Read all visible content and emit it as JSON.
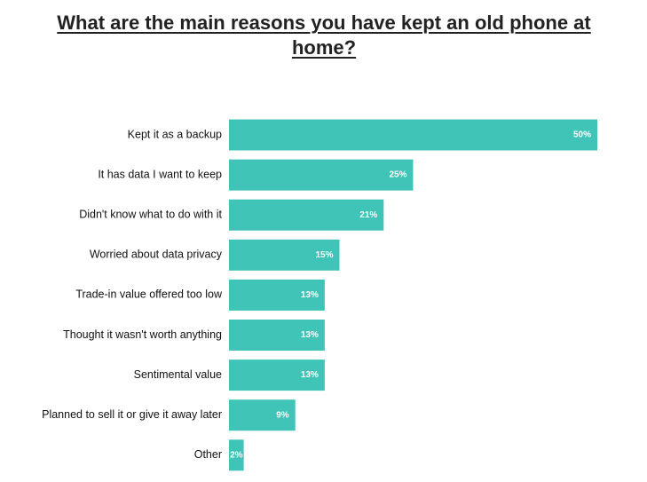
{
  "chart_data": {
    "type": "bar",
    "orientation": "horizontal",
    "title": "What are the main reasons you have kept an old phone at home?",
    "categories": [
      "Kept it as a backup",
      "It has data I want to keep",
      "Didn't know what to do with it",
      "Worried about data privacy",
      "Trade-in value offered too low",
      "Thought it wasn't worth anything",
      "Sentimental value",
      "Planned to sell it or give it away later",
      "Other"
    ],
    "values": [
      50,
      25,
      21,
      15,
      13,
      13,
      13,
      9,
      2
    ],
    "value_labels": [
      "50%",
      "25%",
      "21%",
      "15%",
      "13%",
      "13%",
      "13%",
      "9%",
      "2%"
    ],
    "unit": "%",
    "grid": false,
    "legend": "none",
    "bar_color": "#40c4b8"
  }
}
